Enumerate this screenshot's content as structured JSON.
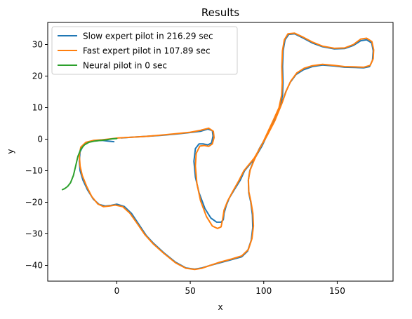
{
  "chart_data": {
    "type": "line",
    "title": "Results",
    "xlabel": "x",
    "ylabel": "y",
    "xlim": [
      -47,
      188
    ],
    "ylim": [
      -45,
      37
    ],
    "xticks": [
      0,
      50,
      100,
      150
    ],
    "yticks": [
      -40,
      -30,
      -20,
      -10,
      0,
      10,
      20,
      30
    ],
    "x_tick_labels": [
      "0",
      "50",
      "100",
      "150"
    ],
    "y_tick_labels": [
      "−40",
      "−30",
      "−20",
      "−10",
      "0",
      "10",
      "20",
      "30"
    ],
    "grid": false,
    "legend_position": "top-left",
    "series": [
      {
        "name": "Slow expert pilot in 216.29 sec",
        "color": "#1f77b4",
        "points": [
          [
            -2,
            -0.8
          ],
          [
            -6,
            -0.6
          ],
          [
            -10,
            -0.4
          ],
          [
            -15,
            -0.5
          ],
          [
            -20,
            -1.0
          ],
          [
            -23,
            -2.2
          ],
          [
            -25,
            -4
          ],
          [
            -25.5,
            -7
          ],
          [
            -25,
            -10
          ],
          [
            -23,
            -13
          ],
          [
            -20,
            -16
          ],
          [
            -16,
            -19
          ],
          [
            -12,
            -20.7
          ],
          [
            -8,
            -21.2
          ],
          [
            -4,
            -21.0
          ],
          [
            0,
            -20.6
          ],
          [
            5,
            -21.3
          ],
          [
            10,
            -23.5
          ],
          [
            15,
            -27
          ],
          [
            20,
            -30.5
          ],
          [
            25,
            -33
          ],
          [
            32,
            -36
          ],
          [
            40,
            -39
          ],
          [
            47,
            -40.8
          ],
          [
            53,
            -41.2
          ],
          [
            58,
            -40.8
          ],
          [
            63,
            -40.1
          ],
          [
            70,
            -39.2
          ],
          [
            78,
            -38.2
          ],
          [
            85,
            -37.3
          ],
          [
            89,
            -35.5
          ],
          [
            91.5,
            -32
          ],
          [
            92.5,
            -28
          ],
          [
            92.3,
            -24
          ],
          [
            91.2,
            -20
          ],
          [
            89.8,
            -17
          ],
          [
            89.5,
            -13
          ],
          [
            90.5,
            -10
          ],
          [
            93,
            -7
          ],
          [
            97,
            -3
          ],
          [
            102,
            1
          ],
          [
            107,
            5.5
          ],
          [
            112,
            11
          ],
          [
            115,
            15
          ],
          [
            118,
            18
          ],
          [
            122,
            20.5
          ],
          [
            127,
            22
          ],
          [
            133,
            23
          ],
          [
            140,
            23.5
          ],
          [
            148,
            23.2
          ],
          [
            155,
            22.8
          ],
          [
            162,
            22.7
          ],
          [
            168,
            22.6
          ],
          [
            172,
            23.0
          ],
          [
            174,
            25
          ],
          [
            174.5,
            28
          ],
          [
            173.5,
            30.5
          ],
          [
            170,
            31.5
          ],
          [
            166,
            31.2
          ],
          [
            161,
            29.7
          ],
          [
            155,
            28.7
          ],
          [
            148,
            28.6
          ],
          [
            140,
            29.3
          ],
          [
            133,
            30.5
          ],
          [
            127,
            32.0
          ],
          [
            121,
            33.4
          ],
          [
            117,
            33.2
          ],
          [
            114.5,
            31.5
          ],
          [
            113.2,
            28
          ],
          [
            112.8,
            23
          ],
          [
            113.1,
            18
          ],
          [
            112.8,
            14
          ],
          [
            111,
            10
          ],
          [
            107,
            6
          ],
          [
            103,
            2
          ],
          [
            99,
            -2
          ],
          [
            94,
            -6
          ],
          [
            87,
            -10
          ],
          [
            84,
            -13
          ],
          [
            80,
            -16
          ],
          [
            76.5,
            -18.7
          ],
          [
            74.5,
            -21
          ],
          [
            73,
            -23.5
          ],
          [
            72.5,
            -25.5
          ],
          [
            71,
            -26.3
          ],
          [
            68,
            -26.3
          ],
          [
            64,
            -25
          ],
          [
            60,
            -22
          ],
          [
            56,
            -17
          ],
          [
            53.5,
            -12
          ],
          [
            52.5,
            -7
          ],
          [
            53.5,
            -3
          ],
          [
            56,
            -1.5
          ],
          [
            59,
            -1.5
          ],
          [
            62,
            -1.8
          ],
          [
            64.5,
            -1.2
          ],
          [
            65.5,
            1
          ],
          [
            65,
            2.7
          ],
          [
            62,
            3.2
          ],
          [
            57,
            2.5
          ],
          [
            50,
            2.1
          ],
          [
            40,
            1.6
          ],
          [
            30,
            1.2
          ],
          [
            20,
            0.9
          ],
          [
            10,
            0.6
          ],
          [
            3,
            0.4
          ]
        ]
      },
      {
        "name": "Fast expert pilot in 107.89 sec",
        "color": "#ff7f0e",
        "points": [
          [
            1,
            0.4
          ],
          [
            -4,
            0.1
          ],
          [
            -10,
            -0.2
          ],
          [
            -16,
            -0.4
          ],
          [
            -21,
            -1.0
          ],
          [
            -24.5,
            -2.5
          ],
          [
            -25.5,
            -5
          ],
          [
            -25,
            -8.5
          ],
          [
            -23.5,
            -11.5
          ],
          [
            -20.5,
            -15
          ],
          [
            -17,
            -18.2
          ],
          [
            -13,
            -20.5
          ],
          [
            -9,
            -21.4
          ],
          [
            -5,
            -21.2
          ],
          [
            -1,
            -20.9
          ],
          [
            4,
            -21.4
          ],
          [
            9,
            -23.5
          ],
          [
            14,
            -26.8
          ],
          [
            19,
            -30.2
          ],
          [
            25,
            -33.3
          ],
          [
            32,
            -36.2
          ],
          [
            40,
            -39.2
          ],
          [
            47,
            -40.9
          ],
          [
            53,
            -41.3
          ],
          [
            58,
            -40.9
          ],
          [
            63,
            -40.1
          ],
          [
            70,
            -39.0
          ],
          [
            78,
            -38.0
          ],
          [
            85,
            -37.0
          ],
          [
            89.5,
            -35
          ],
          [
            92,
            -31.5
          ],
          [
            93,
            -27.5
          ],
          [
            92.6,
            -23.5
          ],
          [
            91.2,
            -19.5
          ],
          [
            89.8,
            -16.5
          ],
          [
            89.6,
            -12.8
          ],
          [
            90.8,
            -9.7
          ],
          [
            93.5,
            -6.6
          ],
          [
            97.5,
            -2.7
          ],
          [
            102.5,
            1.3
          ],
          [
            107.5,
            5.8
          ],
          [
            112.5,
            11.5
          ],
          [
            115.5,
            15.5
          ],
          [
            118.5,
            18.5
          ],
          [
            122.5,
            21
          ],
          [
            127.5,
            22.5
          ],
          [
            133,
            23.3
          ],
          [
            140,
            23.7
          ],
          [
            148,
            23.4
          ],
          [
            155,
            23.0
          ],
          [
            162,
            22.9
          ],
          [
            168,
            22.8
          ],
          [
            172.5,
            23.4
          ],
          [
            174.5,
            25.5
          ],
          [
            174.8,
            28.3
          ],
          [
            173.6,
            30.9
          ],
          [
            170,
            32.0
          ],
          [
            166,
            31.7
          ],
          [
            161,
            30.0
          ],
          [
            155,
            28.9
          ],
          [
            148,
            28.8
          ],
          [
            140,
            29.5
          ],
          [
            133,
            30.8
          ],
          [
            127,
            32.3
          ],
          [
            121,
            33.6
          ],
          [
            116.5,
            33.4
          ],
          [
            114,
            31.5
          ],
          [
            112.7,
            28
          ],
          [
            112.3,
            23
          ],
          [
            112.6,
            18
          ],
          [
            112.2,
            14
          ],
          [
            110.4,
            10
          ],
          [
            106.5,
            6
          ],
          [
            102.5,
            2
          ],
          [
            98.5,
            -2
          ],
          [
            93.5,
            -6
          ],
          [
            86.5,
            -10
          ],
          [
            83,
            -13.2
          ],
          [
            79,
            -16.5
          ],
          [
            75.5,
            -19.5
          ],
          [
            73,
            -22.5
          ],
          [
            72,
            -25.5
          ],
          [
            71,
            -27.8
          ],
          [
            68.5,
            -28.3
          ],
          [
            65,
            -27.5
          ],
          [
            61,
            -24.5
          ],
          [
            57,
            -19.5
          ],
          [
            54.5,
            -14
          ],
          [
            53.5,
            -8.5
          ],
          [
            54,
            -4.5
          ],
          [
            56.5,
            -2.2
          ],
          [
            59.5,
            -2.0
          ],
          [
            62.5,
            -2.3
          ],
          [
            65,
            -1.5
          ],
          [
            66.2,
            0.5
          ],
          [
            65.7,
            2.5
          ],
          [
            62.5,
            3.5
          ],
          [
            57,
            2.8
          ],
          [
            50,
            2.2
          ],
          [
            40,
            1.7
          ],
          [
            30,
            1.3
          ],
          [
            20,
            0.9
          ],
          [
            10,
            0.6
          ],
          [
            1,
            0.4
          ]
        ]
      },
      {
        "name": "Neural pilot in 0 sec",
        "color": "#2ca02c",
        "points": [
          [
            0,
            0.2
          ],
          [
            -3,
            0.1
          ],
          [
            -7,
            -0.2
          ],
          [
            -11,
            -0.4
          ],
          [
            -15,
            -0.6
          ],
          [
            -19,
            -1.0
          ],
          [
            -22,
            -1.8
          ],
          [
            -24.5,
            -3.2
          ],
          [
            -26.5,
            -5.5
          ],
          [
            -28,
            -8.5
          ],
          [
            -29.5,
            -11.5
          ],
          [
            -31.5,
            -13.8
          ],
          [
            -33.5,
            -15.0
          ],
          [
            -35.5,
            -15.7
          ],
          [
            -37,
            -16.0
          ]
        ]
      }
    ]
  }
}
